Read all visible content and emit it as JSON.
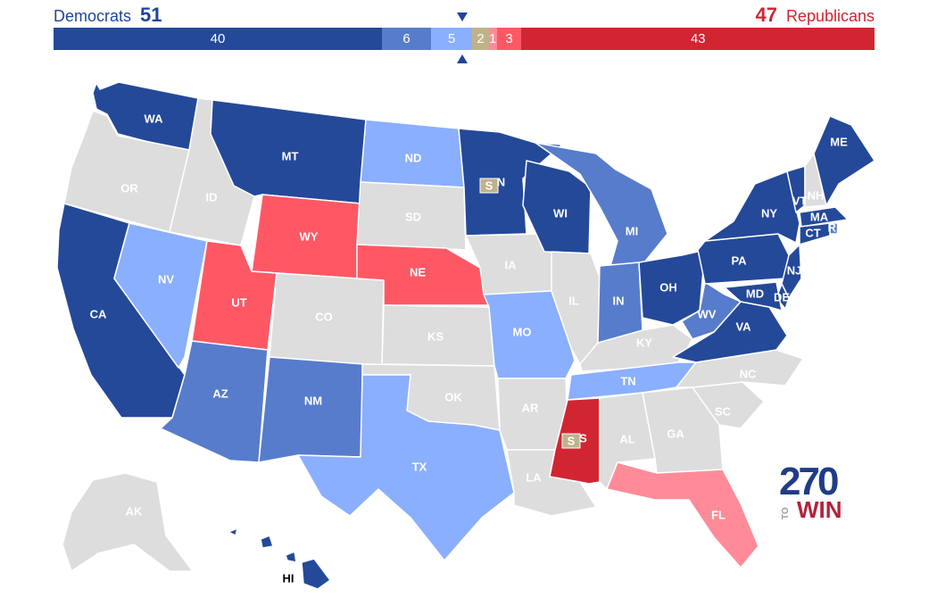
{
  "header": {
    "dem_label": "Democrats",
    "dem_total": "51",
    "rep_label": "Republicans",
    "rep_total": "47"
  },
  "bar": [
    {
      "key": "safe-d",
      "label": "40",
      "seats": 40,
      "color": "#244999"
    },
    {
      "key": "likely-d",
      "label": "6",
      "seats": 6,
      "color": "#577ccc"
    },
    {
      "key": "lean-d",
      "label": "5",
      "seats": 5,
      "color": "#8aafff"
    },
    {
      "key": "tossup",
      "label": "2",
      "seats": 2,
      "color": "#bfb28b"
    },
    {
      "key": "lean-r",
      "label": "1",
      "seats": 1,
      "color": "#ff8b98"
    },
    {
      "key": "likely-r",
      "label": "3",
      "seats": 3,
      "color": "#ff5865"
    },
    {
      "key": "safe-r",
      "label": "43",
      "seats": 43,
      "color": "#d22532"
    }
  ],
  "colors": {
    "safe-d": "#244999",
    "likely-d": "#577ccc",
    "lean-d": "#8aafff",
    "tossup": "#bfb28b",
    "lean-r": "#ff8b98",
    "likely-r": "#ff5865",
    "safe-r": "#d22532",
    "no-race": "#dddddd"
  },
  "states": [
    {
      "abbr": "WA",
      "rating": "safe-d"
    },
    {
      "abbr": "OR",
      "rating": "no-race"
    },
    {
      "abbr": "CA",
      "rating": "safe-d"
    },
    {
      "abbr": "ID",
      "rating": "no-race"
    },
    {
      "abbr": "NV",
      "rating": "lean-d"
    },
    {
      "abbr": "MT",
      "rating": "safe-d"
    },
    {
      "abbr": "WY",
      "rating": "likely-r"
    },
    {
      "abbr": "UT",
      "rating": "likely-r"
    },
    {
      "abbr": "AZ",
      "rating": "likely-d"
    },
    {
      "abbr": "CO",
      "rating": "no-race"
    },
    {
      "abbr": "NM",
      "rating": "likely-d"
    },
    {
      "abbr": "ND",
      "rating": "lean-d"
    },
    {
      "abbr": "SD",
      "rating": "no-race"
    },
    {
      "abbr": "NE",
      "rating": "likely-r"
    },
    {
      "abbr": "KS",
      "rating": "no-race"
    },
    {
      "abbr": "OK",
      "rating": "no-race"
    },
    {
      "abbr": "TX",
      "rating": "lean-d"
    },
    {
      "abbr": "MN",
      "rating": "safe-d"
    },
    {
      "abbr": "IA",
      "rating": "no-race"
    },
    {
      "abbr": "MO",
      "rating": "lean-d"
    },
    {
      "abbr": "AR",
      "rating": "no-race"
    },
    {
      "abbr": "LA",
      "rating": "no-race"
    },
    {
      "abbr": "WI",
      "rating": "safe-d"
    },
    {
      "abbr": "IL",
      "rating": "no-race"
    },
    {
      "abbr": "MI",
      "rating": "likely-d"
    },
    {
      "abbr": "IN",
      "rating": "likely-d"
    },
    {
      "abbr": "OH",
      "rating": "safe-d"
    },
    {
      "abbr": "KY",
      "rating": "no-race"
    },
    {
      "abbr": "TN",
      "rating": "lean-d"
    },
    {
      "abbr": "MS",
      "rating": "safe-r"
    },
    {
      "abbr": "AL",
      "rating": "no-race"
    },
    {
      "abbr": "GA",
      "rating": "no-race"
    },
    {
      "abbr": "FL",
      "rating": "lean-r"
    },
    {
      "abbr": "SC",
      "rating": "no-race"
    },
    {
      "abbr": "NC",
      "rating": "no-race"
    },
    {
      "abbr": "VA",
      "rating": "safe-d"
    },
    {
      "abbr": "WV",
      "rating": "likely-d"
    },
    {
      "abbr": "PA",
      "rating": "safe-d"
    },
    {
      "abbr": "NY",
      "rating": "safe-d"
    },
    {
      "abbr": "VT",
      "rating": "safe-d"
    },
    {
      "abbr": "NH",
      "rating": "no-race"
    },
    {
      "abbr": "ME",
      "rating": "safe-d"
    },
    {
      "abbr": "MA",
      "rating": "safe-d"
    },
    {
      "abbr": "RI",
      "rating": "likely-d"
    },
    {
      "abbr": "CT",
      "rating": "safe-d"
    },
    {
      "abbr": "NJ",
      "rating": "safe-d"
    },
    {
      "abbr": "DE",
      "rating": "safe-d"
    },
    {
      "abbr": "MD",
      "rating": "safe-d"
    },
    {
      "abbr": "AK",
      "rating": "no-race"
    },
    {
      "abbr": "HI",
      "rating": "safe-d"
    }
  ],
  "special_badges": [
    {
      "state": "MN",
      "label": "S"
    },
    {
      "state": "MS",
      "label": "S"
    }
  ],
  "logo": {
    "number": "270",
    "to": "TO",
    "win": "WIN"
  }
}
